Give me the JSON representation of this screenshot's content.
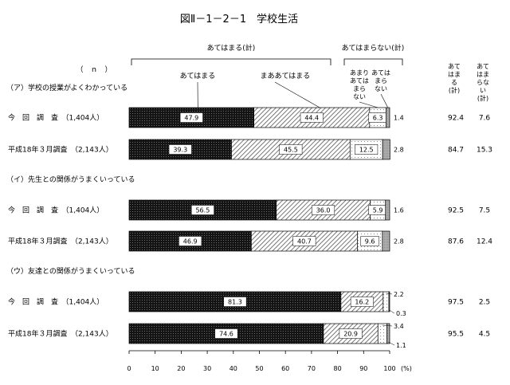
{
  "chart_data": {
    "type": "bar",
    "stacked": true,
    "orientation": "horizontal",
    "title": "図Ⅱ－1－2－1　学校生活",
    "n_label": "（　ｎ　）",
    "group_headers": {
      "applies_total": "あてはまる(計)",
      "not_applies_total": "あてはまらない(計)"
    },
    "series": [
      {
        "key": "s1",
        "name": "あてはまる",
        "color": "#1a1a1a"
      },
      {
        "key": "s2",
        "name": "まああてはまる",
        "color": "#bdbdbd"
      },
      {
        "key": "s3",
        "name": "あまりあてはまらない",
        "color": "#ffffff"
      },
      {
        "key": "s4",
        "name": "あてはまらない",
        "color": "#9a9a9a"
      }
    ],
    "totals_headers": {
      "applies": "あてはまる(計)",
      "not_applies": "あてはまらない(計)"
    },
    "xlim": [
      0,
      100
    ],
    "xticks": [
      "0",
      "10",
      "20",
      "30",
      "40",
      "50",
      "60",
      "70",
      "80",
      "90",
      "100"
    ],
    "xunit": "(%)",
    "groups": [
      {
        "title": "（ア）学校の授業がよくわかっている",
        "rows": [
          {
            "label": "今　回　調　査　（1,404人）",
            "values": [
              47.9,
              44.4,
              6.3,
              1.4
            ],
            "value_labels": [
              "47.9",
              "44.4",
              "6.3",
              ""
            ],
            "outside_labels": [
              "1.4"
            ],
            "total_applies": "92.4",
            "total_not_applies": "7.6"
          },
          {
            "label": "平成18年３月調査　（2,143人）",
            "values": [
              39.3,
              45.5,
              12.5,
              2.8
            ],
            "value_labels": [
              "39.3",
              "45.5",
              "12.5",
              ""
            ],
            "outside_labels": [
              "2.8"
            ],
            "total_applies": "84.7",
            "total_not_applies": "15.3"
          }
        ]
      },
      {
        "title": "（イ）先生との関係がうまくいっている",
        "rows": [
          {
            "label": "今　回　調　査　（1,404人）",
            "values": [
              56.5,
              36.0,
              5.9,
              1.6
            ],
            "value_labels": [
              "56.5",
              "36.0",
              "5.9",
              ""
            ],
            "outside_labels": [
              "1.6"
            ],
            "total_applies": "92.5",
            "total_not_applies": "7.5"
          },
          {
            "label": "平成18年３月調査　（2,143人）",
            "values": [
              46.9,
              40.7,
              9.6,
              2.8
            ],
            "value_labels": [
              "46.9",
              "40.7",
              "9.6",
              ""
            ],
            "outside_labels": [
              "2.8"
            ],
            "total_applies": "87.6",
            "total_not_applies": "12.4"
          }
        ]
      },
      {
        "title": "（ウ）友達との関係がうまくいっている",
        "rows": [
          {
            "label": "今　回　調　査　（1,404人）",
            "values": [
              81.3,
              16.2,
              2.2,
              0.3
            ],
            "value_labels": [
              "81.3",
              "16.2",
              "",
              ""
            ],
            "outside_labels": [
              "2.2",
              "0.3"
            ],
            "total_applies": "97.5",
            "total_not_applies": "2.5"
          },
          {
            "label": "平成18年３月調査　（2,143人）",
            "values": [
              74.6,
              20.9,
              3.4,
              1.1
            ],
            "value_labels": [
              "74.6",
              "20.9",
              "",
              ""
            ],
            "outside_labels": [
              "3.4",
              "1.1"
            ],
            "total_applies": "95.5",
            "total_not_applies": "4.5"
          }
        ]
      }
    ]
  }
}
